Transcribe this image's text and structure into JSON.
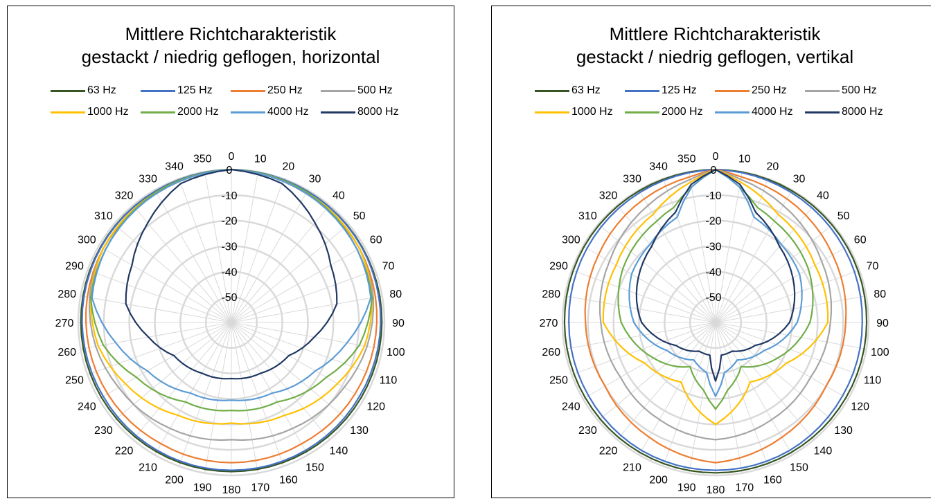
{
  "chart_data": [
    {
      "type": "polar-line",
      "title_lines": [
        "Mittlere Richtcharakteristik",
        "gestackt / niedrig geflogen, horizontal"
      ],
      "angle_labels": [
        "0",
        "10",
        "20",
        "30",
        "40",
        "50",
        "60",
        "70",
        "80",
        "90",
        "100",
        "110",
        "120",
        "130",
        "140",
        "150",
        "160",
        "170",
        "180",
        "190",
        "200",
        "210",
        "220",
        "230",
        "240",
        "250",
        "260",
        "270",
        "280",
        "290",
        "300",
        "310",
        "320",
        "330",
        "340",
        "350"
      ],
      "radial_ticks": [
        "0",
        "-10",
        "-20",
        "-30",
        "-40",
        "-50"
      ],
      "rlim": [
        -60,
        0
      ],
      "grid": true,
      "legend_position": "top",
      "series": [
        {
          "name": "63 Hz",
          "color": "#375623",
          "anchors": [
            [
              0,
              0
            ],
            [
              30,
              -0.5
            ],
            [
              60,
              -0.8
            ],
            [
              90,
              -1
            ],
            [
              120,
              -1.2
            ],
            [
              150,
              -1.4
            ],
            [
              180,
              -1.5
            ]
          ]
        },
        {
          "name": "125 Hz",
          "color": "#4472c4",
          "anchors": [
            [
              0,
              0
            ],
            [
              30,
              -0.5
            ],
            [
              60,
              -1
            ],
            [
              90,
              -1.5
            ],
            [
              120,
              -2
            ],
            [
              150,
              -2
            ],
            [
              180,
              -2
            ]
          ]
        },
        {
          "name": "250 Hz",
          "color": "#ed7d31",
          "anchors": [
            [
              0,
              0
            ],
            [
              30,
              -1.5
            ],
            [
              60,
              -2
            ],
            [
              90,
              -3
            ],
            [
              120,
              -4
            ],
            [
              150,
              -5
            ],
            [
              180,
              -5
            ]
          ]
        },
        {
          "name": "500 Hz",
          "color": "#a5a5a5",
          "anchors": [
            [
              0,
              0
            ],
            [
              30,
              -1
            ],
            [
              60,
              -2
            ],
            [
              80,
              -3.5
            ],
            [
              100,
              -6
            ],
            [
              120,
              -9
            ],
            [
              150,
              -12
            ],
            [
              180,
              -14
            ]
          ]
        },
        {
          "name": "1000 Hz",
          "color": "#ffc000",
          "anchors": [
            [
              0,
              0
            ],
            [
              30,
              -1
            ],
            [
              60,
              -2
            ],
            [
              80,
              -4
            ],
            [
              100,
              -7
            ],
            [
              120,
              -12
            ],
            [
              150,
              -18
            ],
            [
              180,
              -20.5
            ]
          ]
        },
        {
          "name": "2000 Hz",
          "color": "#70ad47",
          "anchors": [
            [
              0,
              0
            ],
            [
              30,
              -1
            ],
            [
              60,
              -3
            ],
            [
              80,
              -4
            ],
            [
              100,
              -9
            ],
            [
              120,
              -17
            ],
            [
              150,
              -24
            ],
            [
              180,
              -25.5
            ]
          ]
        },
        {
          "name": "4000 Hz",
          "color": "#5b9bd5",
          "anchors": [
            [
              0,
              0
            ],
            [
              30,
              -1.5
            ],
            [
              60,
              -3
            ],
            [
              80,
              -4.5
            ],
            [
              100,
              -14
            ],
            [
              120,
              -22
            ],
            [
              150,
              -28
            ],
            [
              180,
              -29.5
            ]
          ]
        },
        {
          "name": "8000 Hz",
          "color": "#203864",
          "anchors": [
            [
              0,
              0
            ],
            [
              20,
              -2
            ],
            [
              40,
              -9
            ],
            [
              60,
              -15
            ],
            [
              80,
              -18
            ],
            [
              100,
              -27
            ],
            [
              120,
              -34
            ],
            [
              150,
              -37
            ],
            [
              180,
              -38
            ]
          ]
        }
      ]
    },
    {
      "type": "polar-line",
      "title_lines": [
        "Mittlere Richtcharakteristik",
        "gestackt / niedrig geflogen, vertikal"
      ],
      "angle_labels": [
        "0",
        "10",
        "20",
        "30",
        "40",
        "50",
        "60",
        "70",
        "80",
        "90",
        "100",
        "110",
        "120",
        "130",
        "140",
        "150",
        "160",
        "170",
        "180",
        "190",
        "200",
        "210",
        "220",
        "230",
        "240",
        "250",
        "260",
        "270",
        "280",
        "290",
        "300",
        "310",
        "320",
        "330",
        "340",
        "350"
      ],
      "radial_ticks": [
        "0",
        "-10",
        "-20",
        "-30",
        "-40",
        "-50"
      ],
      "rlim": [
        -60,
        0
      ],
      "grid": true,
      "legend_position": "top",
      "series": [
        {
          "name": "63 Hz",
          "color": "#375623",
          "anchors": [
            [
              0,
              0
            ],
            [
              30,
              -0.3
            ],
            [
              60,
              -0.5
            ],
            [
              90,
              -0.8
            ],
            [
              120,
              -1
            ],
            [
              150,
              -1
            ],
            [
              180,
              -1
            ]
          ]
        },
        {
          "name": "125 Hz",
          "color": "#4472c4",
          "anchors": [
            [
              0,
              0
            ],
            [
              30,
              -1
            ],
            [
              60,
              -1.8
            ],
            [
              90,
              -2.5
            ],
            [
              120,
              -2.5
            ],
            [
              150,
              -2
            ],
            [
              180,
              -2
            ]
          ]
        },
        {
          "name": "250 Hz",
          "color": "#ed7d31",
          "anchors": [
            [
              0,
              0
            ],
            [
              10,
              -2
            ],
            [
              30,
              -4
            ],
            [
              60,
              -7
            ],
            [
              90,
              -9
            ],
            [
              120,
              -10
            ],
            [
              150,
              -8
            ],
            [
              180,
              -5
            ]
          ]
        },
        {
          "name": "500 Hz",
          "color": "#a5a5a5",
          "anchors": [
            [
              0,
              0
            ],
            [
              10,
              -3
            ],
            [
              30,
              -7
            ],
            [
              60,
              -12
            ],
            [
              90,
              -15
            ],
            [
              120,
              -17
            ],
            [
              150,
              -16
            ],
            [
              180,
              -14
            ]
          ]
        },
        {
          "name": "1000 Hz",
          "color": "#ffc000",
          "anchors": [
            [
              0,
              0
            ],
            [
              10,
              -4
            ],
            [
              30,
              -11
            ],
            [
              60,
              -15
            ],
            [
              90,
              -16
            ],
            [
              120,
              -28
            ],
            [
              150,
              -33
            ],
            [
              180,
              -20
            ]
          ]
        },
        {
          "name": "2000 Hz",
          "color": "#70ad47",
          "anchors": [
            [
              0,
              0
            ],
            [
              10,
              -6
            ],
            [
              20,
              -12
            ],
            [
              30,
              -14
            ],
            [
              60,
              -18
            ],
            [
              90,
              -23
            ],
            [
              120,
              -32
            ],
            [
              150,
              -40
            ],
            [
              170,
              -33
            ],
            [
              180,
              -26
            ]
          ]
        },
        {
          "name": "4000 Hz",
          "color": "#5b9bd5",
          "anchors": [
            [
              0,
              0
            ],
            [
              10,
              -6
            ],
            [
              20,
              -16
            ],
            [
              40,
              -20
            ],
            [
              60,
              -22
            ],
            [
              90,
              -28
            ],
            [
              120,
              -38
            ],
            [
              150,
              -43
            ],
            [
              170,
              -40
            ],
            [
              180,
              -31
            ]
          ]
        },
        {
          "name": "8000 Hz",
          "color": "#203864",
          "anchors": [
            [
              0,
              0
            ],
            [
              10,
              -5
            ],
            [
              20,
              -14
            ],
            [
              40,
              -21
            ],
            [
              60,
              -25
            ],
            [
              90,
              -31
            ],
            [
              120,
              -42
            ],
            [
              150,
              -47
            ],
            [
              170,
              -47
            ],
            [
              180,
              -37
            ]
          ]
        }
      ]
    }
  ]
}
